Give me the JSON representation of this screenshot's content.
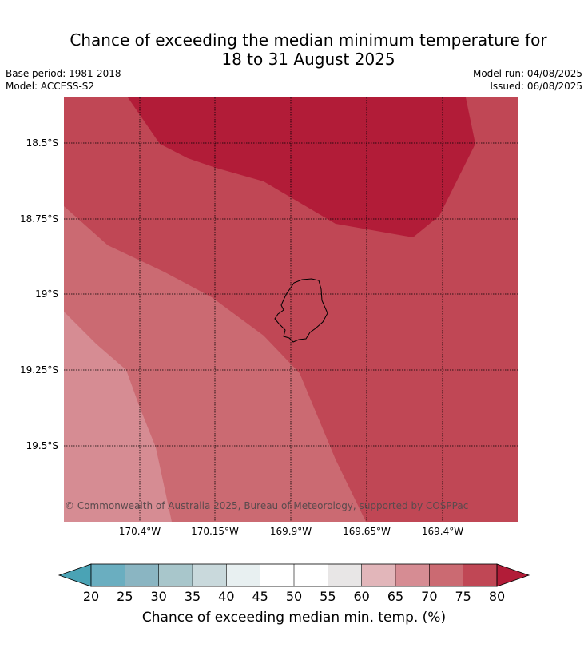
{
  "title_line1": "Chance of exceeding the median minimum temperature for",
  "title_line2": "18 to 31 August 2025",
  "base_period": "Base period: 1981-2018",
  "model": "Model: ACCESS-S2",
  "model_run": "Model run: 04/08/2025",
  "issued": "Issued: 06/08/2025",
  "copyright": "© Commonwealth of Australia 2025, Bureau of Meteorology, supported by COSPPac",
  "lat_labels": [
    "18.5°S",
    "18.75°S",
    "19°S",
    "19.25°S",
    "19.5°S"
  ],
  "lon_labels": [
    "170.4°W",
    "170.15°W",
    "169.9°W",
    "169.65°W",
    "169.4°W"
  ],
  "colorbar": {
    "title": "Chance of exceeding median min. temp. (%)",
    "ticks": [
      "20",
      "25",
      "30",
      "35",
      "40",
      "45",
      "50",
      "55",
      "60",
      "65",
      "70",
      "75",
      "80"
    ],
    "colors": [
      "#4aa3b5",
      "#6aaec0",
      "#8ab5c2",
      "#a8c6cb",
      "#c9d9dc",
      "#e8f0f1",
      "#ffffff",
      "#ffffff",
      "#e8e6e6",
      "#e2b6ba",
      "#d68c93",
      "#cb6a72",
      "#c04755",
      "#b21c38"
    ]
  },
  "map": {
    "zone_colors": {
      "p80": "#b21c38",
      "p75": "#c04755",
      "p70": "#cb6a72",
      "p65": "#d68c93"
    },
    "island": "Niue"
  }
}
